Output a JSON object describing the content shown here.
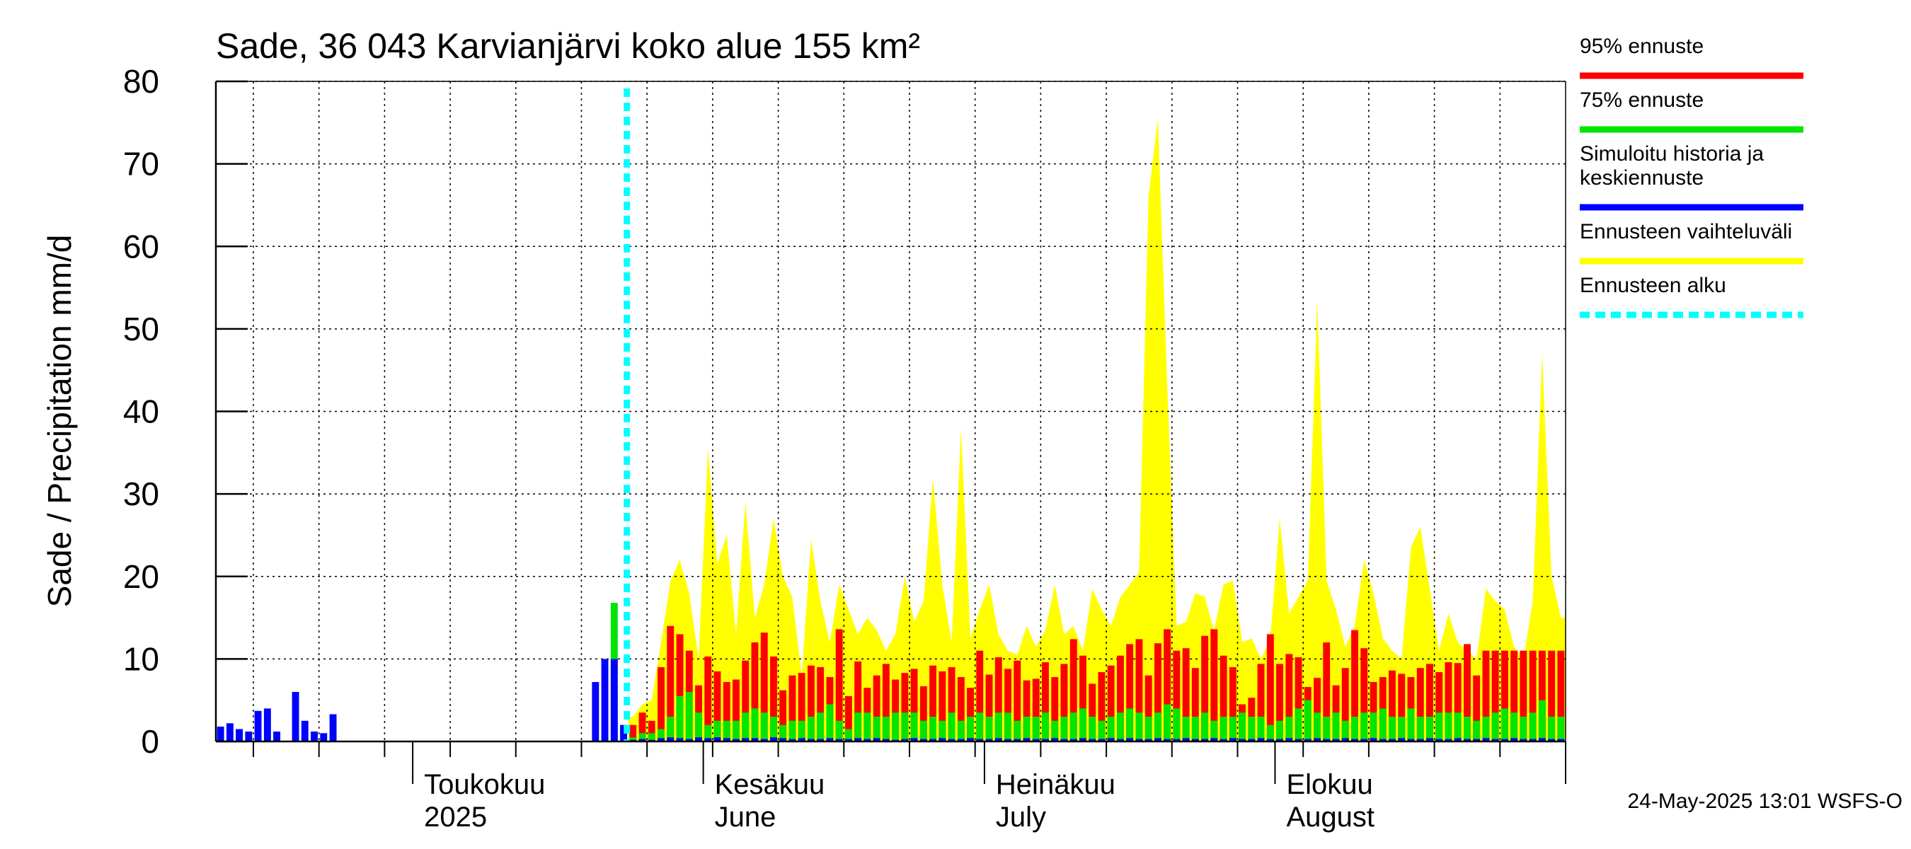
{
  "chart_data": {
    "type": "bar",
    "title": "Sade, 36 043 Karvianjärvi koko alue 155 km²",
    "ylabel": "Sade / Precipitation   mm/d",
    "ylim": [
      0,
      80
    ],
    "y_ticks": [
      0,
      10,
      20,
      30,
      40,
      50,
      60,
      70,
      80
    ],
    "x_start": "2025-04-10",
    "x_end": "2025-08-31",
    "month_labels": [
      {
        "date": "2025-05-01",
        "line1": "Toukokuu",
        "line2": "2025"
      },
      {
        "date": "2025-06-01",
        "line1": "Kesäkuu",
        "line2": "June"
      },
      {
        "date": "2025-07-01",
        "line1": "Heinäkuu",
        "line2": "July"
      },
      {
        "date": "2025-08-01",
        "line1": "Elokuu",
        "line2": "August"
      }
    ],
    "forecast_start": "2025-05-24",
    "history": {
      "name": "Simuloitu historia ja keskiennuste",
      "x": [
        "2025-04-10",
        "2025-04-11",
        "2025-04-12",
        "2025-04-13",
        "2025-04-14",
        "2025-04-15",
        "2025-04-16",
        "2025-04-18",
        "2025-04-19",
        "2025-04-20",
        "2025-04-21",
        "2025-04-22",
        "2025-05-20",
        "2025-05-21",
        "2025-05-22",
        "2025-05-23"
      ],
      "y": [
        1.8,
        2.2,
        1.5,
        1.2,
        3.7,
        4.0,
        1.2,
        6.0,
        2.5,
        1.2,
        1.0,
        3.3,
        7.2,
        10.0,
        10.0,
        2.0
      ],
      "green_top": {
        "2025-05-22": 16.8
      }
    },
    "forecast": {
      "x": [
        "2025-05-24",
        "2025-05-25",
        "2025-05-26",
        "2025-05-27",
        "2025-05-28",
        "2025-05-29",
        "2025-05-30",
        "2025-05-31",
        "2025-06-01",
        "2025-06-02",
        "2025-06-03",
        "2025-06-04",
        "2025-06-05",
        "2025-06-06",
        "2025-06-07",
        "2025-06-08",
        "2025-06-09",
        "2025-06-10",
        "2025-06-11",
        "2025-06-12",
        "2025-06-13",
        "2025-06-14",
        "2025-06-15",
        "2025-06-16",
        "2025-06-17",
        "2025-06-18",
        "2025-06-19",
        "2025-06-20",
        "2025-06-21",
        "2025-06-22",
        "2025-06-23",
        "2025-06-24",
        "2025-06-25",
        "2025-06-26",
        "2025-06-27",
        "2025-06-28",
        "2025-06-29",
        "2025-06-30",
        "2025-07-01",
        "2025-07-02",
        "2025-07-03",
        "2025-07-04",
        "2025-07-05",
        "2025-07-06",
        "2025-07-07",
        "2025-07-08",
        "2025-07-09",
        "2025-07-10",
        "2025-07-11",
        "2025-07-12",
        "2025-07-13",
        "2025-07-14",
        "2025-07-15",
        "2025-07-16",
        "2025-07-17",
        "2025-07-18",
        "2025-07-19",
        "2025-07-20",
        "2025-07-21",
        "2025-07-22",
        "2025-07-23",
        "2025-07-24",
        "2025-07-25",
        "2025-07-26",
        "2025-07-27",
        "2025-07-28",
        "2025-07-29",
        "2025-07-30",
        "2025-07-31",
        "2025-08-01",
        "2025-08-02",
        "2025-08-03",
        "2025-08-04",
        "2025-08-05",
        "2025-08-06",
        "2025-08-07",
        "2025-08-08",
        "2025-08-09",
        "2025-08-10",
        "2025-08-11",
        "2025-08-12",
        "2025-08-13",
        "2025-08-14",
        "2025-08-15",
        "2025-08-16",
        "2025-08-17",
        "2025-08-18",
        "2025-08-19",
        "2025-08-20",
        "2025-08-21",
        "2025-08-22",
        "2025-08-23",
        "2025-08-24",
        "2025-08-25",
        "2025-08-26",
        "2025-08-27",
        "2025-08-28",
        "2025-08-29",
        "2025-08-30",
        "2025-08-31"
      ],
      "mean": [
        0.2,
        0.3,
        0.2,
        0.4,
        0.5,
        0.4,
        0.3,
        0.5,
        0.4,
        0.5,
        0.4,
        0.3,
        0.4,
        0.4,
        0.3,
        0.5,
        0.4,
        0.3,
        0.4,
        0.3,
        0.3,
        0.4,
        0.3,
        0.3,
        0.4,
        0.3,
        0.4,
        0.3,
        0.2,
        0.3,
        0.4,
        0.3,
        0.3,
        0.4,
        0.3,
        0.3,
        0.4,
        0.3,
        0.3,
        0.4,
        0.3,
        0.3,
        0.4,
        0.3,
        0.3,
        0.4,
        0.3,
        0.3,
        0.4,
        0.3,
        0.3,
        0.4,
        0.3,
        0.4,
        0.3,
        0.3,
        0.4,
        0.3,
        0.3,
        0.4,
        0.3,
        0.3,
        0.4,
        0.3,
        0.4,
        0.3,
        0.3,
        0.4,
        0.3,
        0.3,
        0.4,
        0.3,
        0.3,
        0.4,
        0.3,
        0.3,
        0.4,
        0.3,
        0.3,
        0.4,
        0.3,
        0.3,
        0.4,
        0.3,
        0.3,
        0.4,
        0.3,
        0.3,
        0.4,
        0.3,
        0.3,
        0.4,
        0.3,
        0.3,
        0.4,
        0.3,
        0.3,
        0.4,
        0.3,
        0.3
      ],
      "p75": [
        0.5,
        1.0,
        1.0,
        1.5,
        3.0,
        5.5,
        6.0,
        3.5,
        2.0,
        2.5,
        2.5,
        2.5,
        3.5,
        4.0,
        3.5,
        3.0,
        2.0,
        2.5,
        2.5,
        3.0,
        3.5,
        4.5,
        2.5,
        1.5,
        3.5,
        3.5,
        3.0,
        3.0,
        3.5,
        3.5,
        3.5,
        2.5,
        3.0,
        2.5,
        3.5,
        2.5,
        3.0,
        3.5,
        3.0,
        3.5,
        3.5,
        2.5,
        3.0,
        3.0,
        3.5,
        2.5,
        3.0,
        3.5,
        4.0,
        3.0,
        2.5,
        3.0,
        3.5,
        4.0,
        3.5,
        3.0,
        3.5,
        4.5,
        4.0,
        3.0,
        3.0,
        3.5,
        2.5,
        3.0,
        3.0,
        3.5,
        3.0,
        3.0,
        2.0,
        2.5,
        3.0,
        4.0,
        5.0,
        3.5,
        3.0,
        3.5,
        2.5,
        3.0,
        3.5,
        3.5,
        4.0,
        3.0,
        3.0,
        4.0,
        3.0,
        3.0,
        3.5,
        3.5,
        3.5,
        3.0,
        2.5,
        3.0,
        3.5,
        4.0,
        3.5,
        3.0,
        3.5,
        5.0,
        3.0,
        3.0
      ],
      "p95": [
        2.0,
        3.5,
        2.5,
        9.0,
        14.0,
        13.0,
        11.0,
        6.8,
        10.3,
        8.5,
        7.2,
        7.5,
        9.8,
        12.0,
        13.2,
        10.3,
        6.2,
        8.0,
        8.3,
        9.2,
        9.0,
        7.8,
        13.6,
        5.5,
        9.7,
        6.5,
        8.0,
        9.4,
        7.5,
        8.3,
        8.8,
        6.7,
        9.2,
        8.5,
        9.0,
        7.8,
        6.5,
        11.0,
        8.1,
        10.2,
        8.8,
        9.8,
        7.4,
        7.6,
        9.6,
        7.8,
        9.4,
        12.4,
        10.4,
        7.0,
        8.4,
        9.2,
        10.4,
        11.8,
        12.4,
        8.0,
        11.9,
        13.6,
        11.0,
        11.3,
        8.9,
        12.8,
        13.6,
        10.4,
        9.0,
        4.5,
        5.3,
        9.4,
        13.0,
        9.4,
        10.6,
        10.2,
        6.6,
        7.7,
        12.0,
        6.8,
        8.9,
        13.5,
        11.3,
        7.2,
        7.8,
        8.6,
        8.2,
        7.8,
        8.9,
        9.4,
        8.4,
        9.6,
        9.5,
        11.8,
        8.0,
        11.0,
        11.0,
        11.0,
        11.0,
        11.0,
        11.0,
        11.0,
        11.0,
        11.0
      ],
      "max": [
        3.0,
        4.5,
        5.0,
        12.0,
        19.5,
        22.0,
        18.0,
        10.0,
        35.5,
        21.5,
        25.0,
        13.0,
        29.0,
        15.0,
        19.0,
        27.0,
        20.0,
        17.5,
        8.0,
        24.5,
        17.0,
        12.0,
        19.0,
        16.0,
        13.0,
        15.0,
        13.5,
        11.0,
        13.0,
        20.0,
        14.5,
        17.0,
        32.0,
        19.0,
        12.0,
        38.0,
        12.5,
        16.0,
        19.0,
        13.0,
        11.0,
        10.5,
        14.0,
        11.5,
        13.5,
        19.0,
        13.0,
        14.0,
        11.0,
        18.5,
        16.0,
        14.0,
        17.5,
        19.0,
        20.5,
        66.0,
        75.5,
        43.0,
        14.0,
        14.5,
        18.0,
        17.5,
        13.5,
        19.0,
        19.5,
        12.0,
        12.5,
        10.0,
        12.5,
        27.0,
        15.5,
        17.5,
        19.5,
        53.5,
        19.5,
        16.0,
        11.5,
        14.0,
        22.0,
        18.0,
        12.5,
        11.0,
        10.0,
        23.5,
        26.0,
        18.5,
        11.0,
        15.5,
        12.0,
        11.0,
        10.0,
        18.5,
        17.0,
        16.0,
        11.5,
        10.0,
        17.0,
        47.0,
        20.0,
        15.0
      ]
    },
    "legend": [
      {
        "label": "95% ennuste",
        "color": "#ff0000",
        "style": "solid"
      },
      {
        "label": "75% ennuste",
        "color": "#00e600",
        "style": "solid"
      },
      {
        "label": "Simuloitu historia ja\nkeskiennuste",
        "color": "#0000ff",
        "style": "solid"
      },
      {
        "label": "Ennusteen vaihteluväli",
        "color": "#ffff00",
        "style": "solid"
      },
      {
        "label": "Ennusteen alku",
        "color": "#00ffff",
        "style": "dashed"
      }
    ],
    "legend_position": "right",
    "grid": true
  },
  "footer": "24-May-2025 13:01 WSFS-O"
}
